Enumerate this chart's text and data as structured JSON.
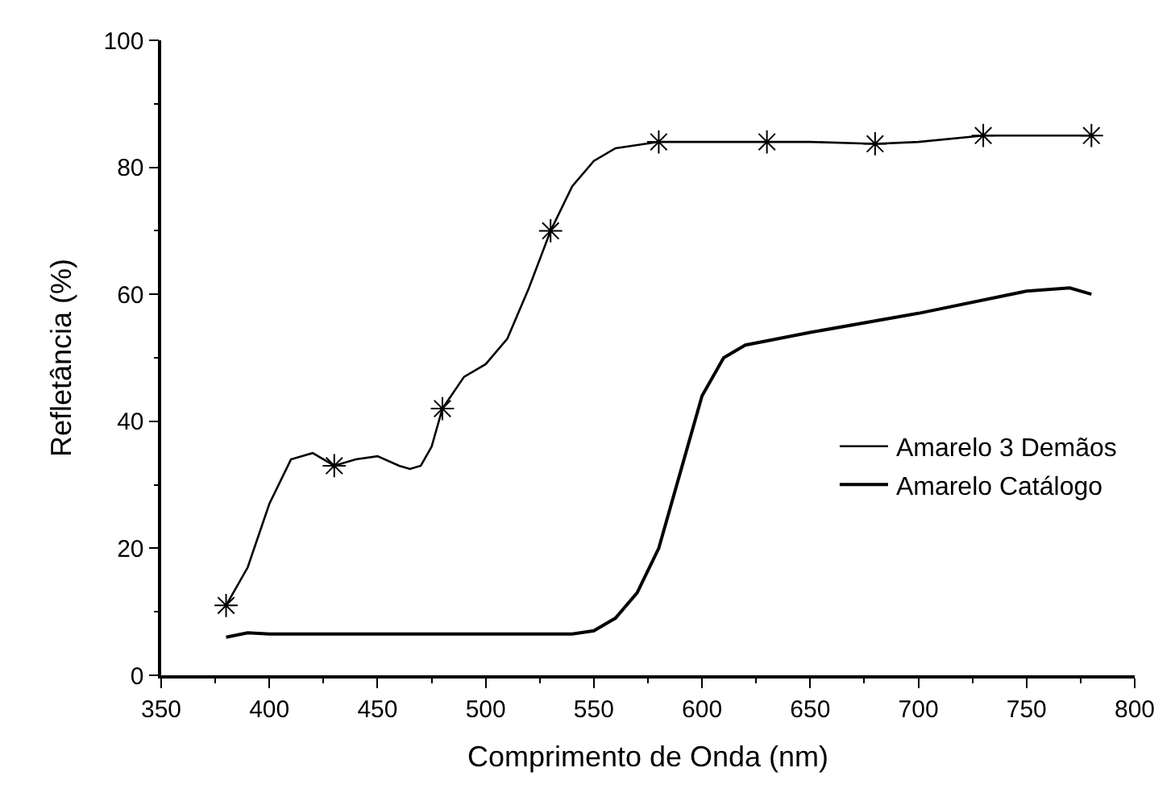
{
  "chart_data": {
    "type": "line",
    "xlabel": "Comprimento de Onda (nm)",
    "ylabel": "Refletância (%)",
    "xlim": [
      350,
      800
    ],
    "xticks": [
      350,
      400,
      450,
      500,
      550,
      600,
      650,
      700,
      750,
      800
    ],
    "ylim": [
      0,
      100
    ],
    "yticks": [
      0,
      20,
      40,
      60,
      80,
      100
    ],
    "legend": "right",
    "series": [
      {
        "name": "Amarelo 3 Demãos",
        "color": "#000000",
        "marker": "none",
        "x": [
          380,
          390,
          400,
          410,
          420,
          430,
          440,
          450,
          460,
          465,
          470,
          475,
          480,
          490,
          500,
          510,
          520,
          530,
          540,
          550,
          560,
          570,
          580,
          600,
          630,
          650,
          680,
          700,
          730,
          750,
          780
        ],
        "values": [
          11,
          17,
          27,
          34,
          35,
          33,
          34,
          34.5,
          33,
          32.5,
          33,
          36,
          42,
          47,
          49,
          53,
          61,
          70,
          77,
          81,
          83,
          83.5,
          84,
          84,
          84,
          84,
          83.7,
          84,
          85,
          85,
          85
        ]
      },
      {
        "type": "scatter",
        "color": "#000000",
        "marker": "cross",
        "x": [
          380,
          430,
          480,
          530,
          580,
          630,
          680,
          730,
          780
        ],
        "values": [
          11,
          33,
          42,
          70,
          84,
          84,
          83.7,
          85,
          85
        ]
      },
      {
        "name": "Amarelo Catálogo",
        "color": "#000000",
        "marker": "none",
        "x": [
          380,
          390,
          400,
          450,
          500,
          540,
          550,
          560,
          570,
          580,
          590,
          600,
          610,
          620,
          650,
          700,
          750,
          770,
          780
        ],
        "values": [
          6,
          6.7,
          6.5,
          6.5,
          6.5,
          6.5,
          7,
          9,
          13,
          20,
          32,
          44,
          50,
          52,
          54,
          57,
          60.5,
          61,
          60
        ]
      }
    ]
  }
}
